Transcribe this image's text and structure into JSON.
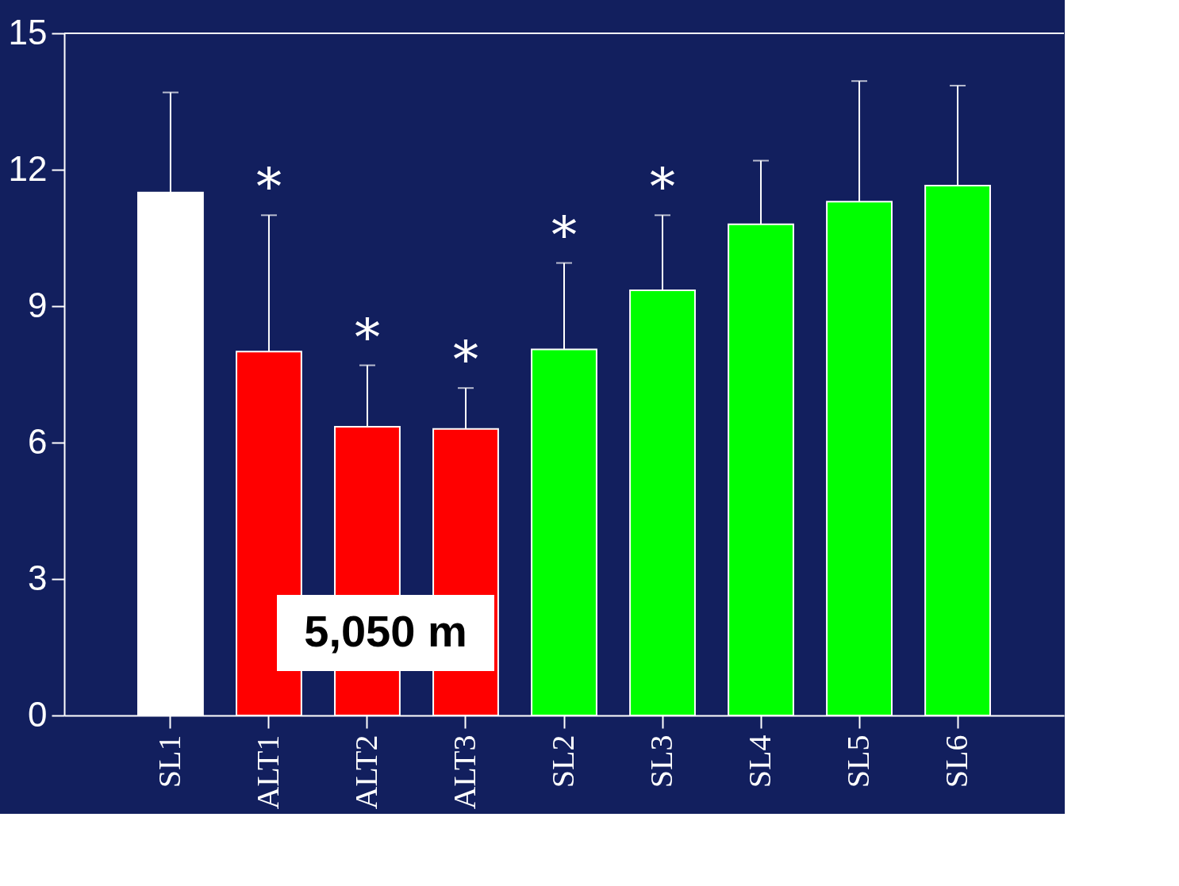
{
  "chart_data": {
    "type": "bar",
    "categories": [
      "SL1",
      "ALT1",
      "ALT2",
      "ALT3",
      "SL2",
      "SL3",
      "SL4",
      "SL5",
      "SL6"
    ],
    "values": [
      11.5,
      8.0,
      6.35,
      6.3,
      8.05,
      9.35,
      10.8,
      11.3,
      11.65
    ],
    "colors": [
      "#ffffff",
      "#ff0000",
      "#ff0000",
      "#ff0000",
      "#00ff00",
      "#00ff00",
      "#00ff00",
      "#00ff00",
      "#00ff00"
    ],
    "errors": [
      [
        11.5,
        13.7
      ],
      [
        8.0,
        11.0
      ],
      [
        6.35,
        7.7
      ],
      [
        6.3,
        7.2
      ],
      [
        8.05,
        9.95
      ],
      [
        9.35,
        11.0
      ],
      [
        10.8,
        12.2
      ],
      [
        11.3,
        13.95
      ],
      [
        11.65,
        13.85
      ]
    ],
    "ylim": [
      0,
      15
    ],
    "yticks": [
      0,
      3,
      6,
      9,
      12,
      15
    ],
    "grid": false,
    "annotations": [
      {
        "text": "*",
        "x": "ALT1",
        "y": 11.0
      },
      {
        "text": "*",
        "x": "ALT2",
        "y": 7.7
      },
      {
        "text": "*",
        "x": "ALT3",
        "y": 7.2
      },
      {
        "text": "*",
        "x": "SL2",
        "y": 9.95
      },
      {
        "text": "*",
        "x": "SL3",
        "y": 11.0
      },
      "5,050 m"
    ]
  }
}
